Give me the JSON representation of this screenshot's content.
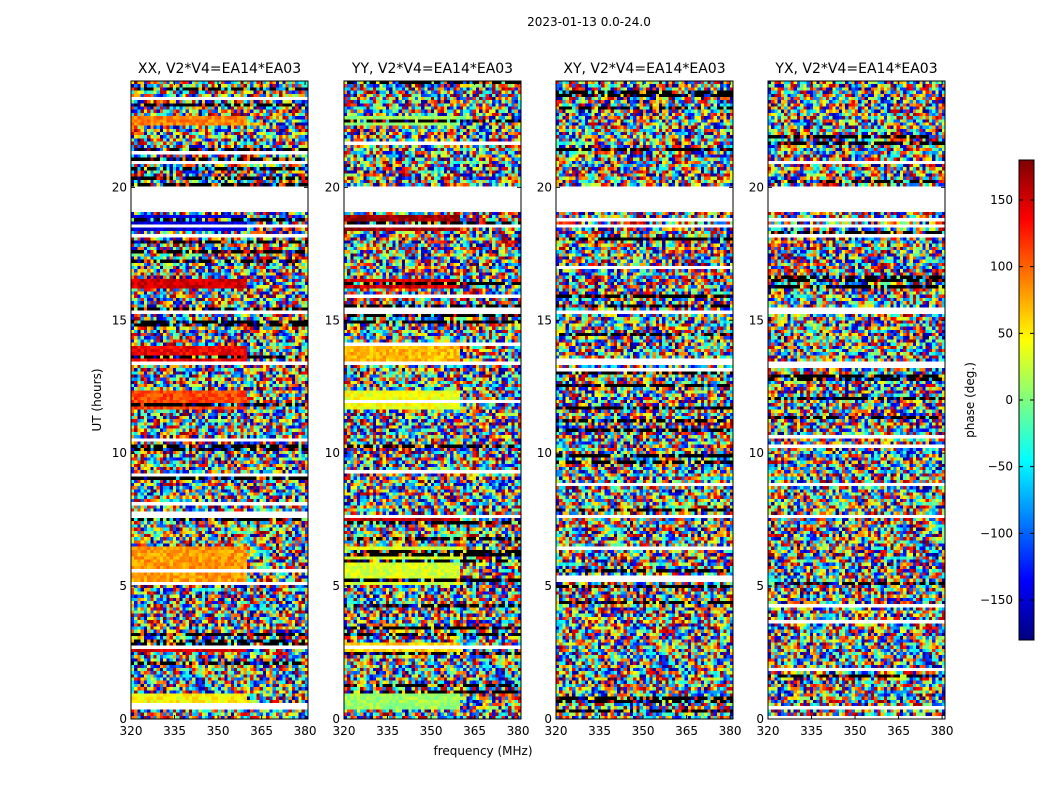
{
  "chart_data": {
    "type": "heatmap",
    "suptitle": "2023-01-13 0.0-24.0",
    "xlabel": "frequency (MHz)",
    "ylabel": "UT (hours)",
    "xlim": [
      320,
      381
    ],
    "ylim": [
      0,
      24
    ],
    "xticks": [
      320,
      335,
      350,
      365,
      380
    ],
    "yticks": [
      0,
      5,
      10,
      15,
      20
    ],
    "colorbar": {
      "label": "phase (deg.)",
      "range": [
        -180,
        180
      ],
      "ticks": [
        150,
        100,
        50,
        0,
        -50,
        -100,
        -150
      ],
      "tick_labels": [
        "150",
        "100",
        "50",
        "0",
        "−50",
        "−100",
        "−150"
      ],
      "colormap": "jet"
    },
    "panels": [
      {
        "title": "XX, V2*V4=EA14*EA03",
        "pol": "XX",
        "coherent_bands": [
          {
            "t0": 0.3,
            "t1": 1.0,
            "phase": 45
          },
          {
            "t0": 2.55,
            "t1": 2.85,
            "phase": 150
          },
          {
            "t0": 5.0,
            "t1": 6.5,
            "phase": 80
          },
          {
            "t0": 7.4,
            "t1": 7.6,
            "phase": 160
          },
          {
            "t0": 11.7,
            "t1": 12.3,
            "phase": 110
          },
          {
            "t0": 13.4,
            "t1": 14.0,
            "phase": 140
          },
          {
            "t0": 16.2,
            "t1": 16.5,
            "phase": 150
          },
          {
            "t0": 18.4,
            "t1": 19.0,
            "phase": -150
          },
          {
            "t0": 22.3,
            "t1": 22.7,
            "phase": 90
          }
        ],
        "gaps": [
          [
            19.1,
            20.0
          ],
          [
            18.45,
            18.6
          ],
          [
            7.55,
            7.7
          ],
          [
            13.35,
            13.45
          ],
          [
            2.95,
            3.05
          ],
          [
            15.3,
            15.4
          ]
        ]
      },
      {
        "title": "YY, V2*V4=EA14*EA03",
        "pol": "YY",
        "coherent_bands": [
          {
            "t0": 0.3,
            "t1": 1.0,
            "phase": 10
          },
          {
            "t0": 2.55,
            "t1": 2.85,
            "phase": 60
          },
          {
            "t0": 5.0,
            "t1": 6.5,
            "phase": 30
          },
          {
            "t0": 7.4,
            "t1": 7.6,
            "phase": 160
          },
          {
            "t0": 11.7,
            "t1": 12.3,
            "phase": 40
          },
          {
            "t0": 13.4,
            "t1": 14.0,
            "phase": 70
          },
          {
            "t0": 16.2,
            "t1": 16.5,
            "phase": 150
          },
          {
            "t0": 18.4,
            "t1": 19.0,
            "phase": 170
          },
          {
            "t0": 22.3,
            "t1": 22.7,
            "phase": 10
          }
        ],
        "gaps": [
          [
            19.1,
            20.0
          ],
          [
            18.45,
            18.6
          ],
          [
            7.55,
            7.7
          ],
          [
            13.35,
            13.45
          ],
          [
            2.95,
            3.05
          ],
          [
            15.3,
            15.4
          ]
        ]
      },
      {
        "title": "XY, V2*V4=EA14*EA03",
        "pol": "XY",
        "coherent_bands": [],
        "gaps": [
          [
            19.1,
            20.0
          ],
          [
            18.45,
            18.6
          ],
          [
            7.55,
            7.7
          ],
          [
            13.35,
            13.45
          ],
          [
            2.95,
            3.05
          ],
          [
            15.3,
            15.4
          ]
        ]
      },
      {
        "title": "YX, V2*V4=EA14*EA03",
        "pol": "YX",
        "coherent_bands": [],
        "gaps": [
          [
            19.1,
            20.0
          ],
          [
            18.45,
            18.6
          ],
          [
            7.55,
            7.7
          ],
          [
            13.35,
            13.45
          ],
          [
            2.95,
            3.05
          ],
          [
            15.3,
            15.4
          ]
        ]
      }
    ]
  },
  "colors": {
    "axis": "#000000",
    "background": "#ffffff"
  }
}
